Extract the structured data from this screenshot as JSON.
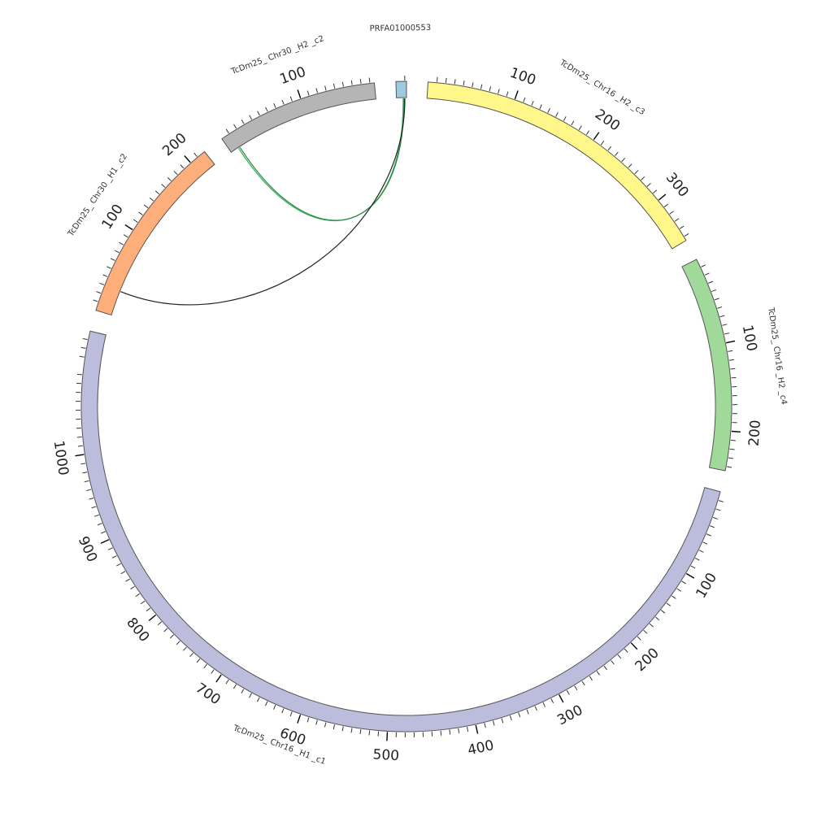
{
  "diagram": {
    "segments": [
      {
        "id": "chr16-h2-c3",
        "label": "TcDm25_ Chr16 _H2 _c3",
        "length": 355,
        "color": "#fff78a",
        "major_ticks": [
          100,
          200,
          300
        ]
      },
      {
        "id": "chr16-h2-c4",
        "label": "TcDm25_ Chr16 _H2 _c4",
        "length": 245,
        "color": "#a1d99b",
        "major_ticks": [
          100,
          200
        ]
      },
      {
        "id": "chr16-h1-c1",
        "label": "TcDm25_ Chr16 _H1 _c1",
        "length": 1140,
        "color": "#bcbddc",
        "major_ticks": [
          100,
          200,
          300,
          400,
          500,
          600,
          700,
          800,
          900,
          1000
        ]
      },
      {
        "id": "chr30-h1-c2",
        "label": "TcDm25_ Chr30 _H1 _c2",
        "length": 220,
        "color": "#fdae7b",
        "major_ticks": [
          100,
          200
        ]
      },
      {
        "id": "chr30-h2-c2",
        "label": "TcDm25_ Chr30 _H2 _c2",
        "length": 185,
        "color": "#b5b5b5",
        "major_ticks": [
          100
        ]
      },
      {
        "id": "prfa",
        "label": "PRFA01000553",
        "length": 12,
        "color": "#9ecae1",
        "major_ticks": []
      }
    ],
    "links": [
      {
        "from": "prfa",
        "from_pos": 8,
        "to": "chr30-h2-c2",
        "to_pos": 10,
        "color": "#41ab5d"
      },
      {
        "from": "prfa",
        "from_pos": 9,
        "to": "chr30-h2-c2",
        "to_pos": 12,
        "color": "#238b45"
      },
      {
        "from": "prfa",
        "from_pos": 10,
        "to": "chr30-h1-c2",
        "to_pos": 30,
        "color": "#222222"
      }
    ]
  }
}
